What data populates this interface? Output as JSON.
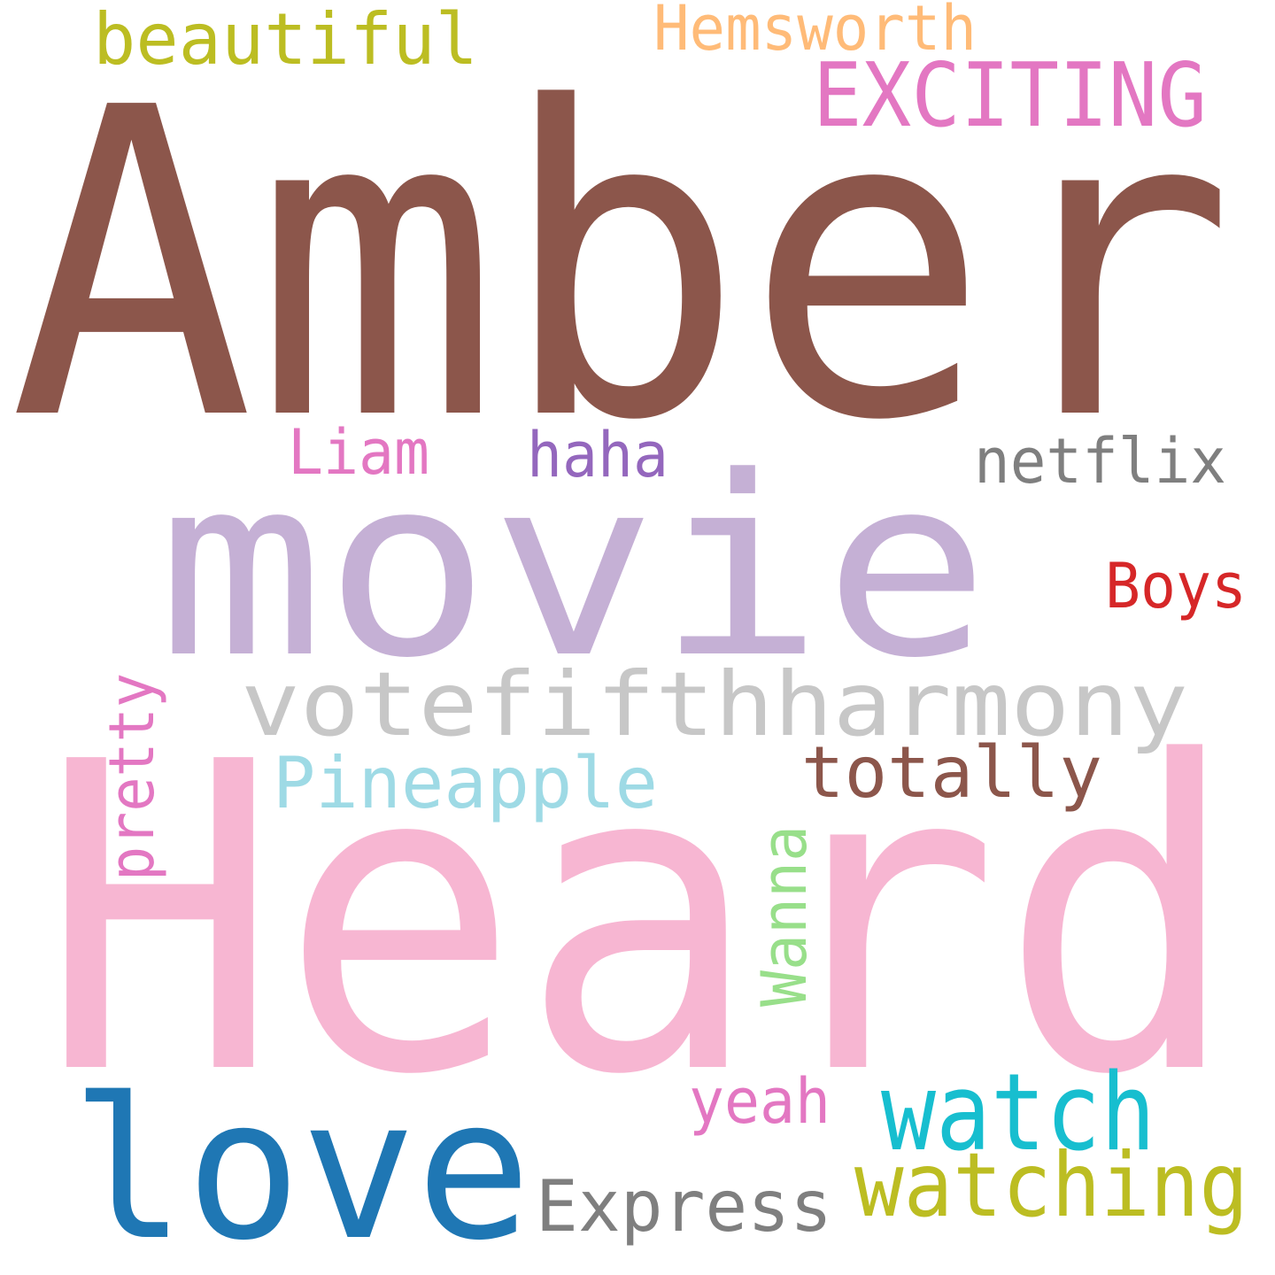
{
  "background": "#ffffff",
  "words": [
    {
      "text": "Amber",
      "color": "#8c564b"
    },
    {
      "text": "Heard",
      "color": "#f7b6d2"
    },
    {
      "text": "movie",
      "color": "#c5b0d5"
    },
    {
      "text": "love",
      "color": "#1f77b4"
    },
    {
      "text": "votefifthharmony",
      "color": "#c7c7c7"
    },
    {
      "text": "watch",
      "color": "#17becf"
    },
    {
      "text": "watching",
      "color": "#bcbd22"
    },
    {
      "text": "EXCITING",
      "color": "#e377c2"
    },
    {
      "text": "Express",
      "color": "#7f7f7f"
    },
    {
      "text": "beautiful",
      "color": "#bcbd22"
    },
    {
      "text": "Pineapple",
      "color": "#9edae5"
    },
    {
      "text": "totally",
      "color": "#8c564b"
    },
    {
      "text": "Hemsworth",
      "color": "#ffbb78"
    },
    {
      "text": "netflix",
      "color": "#7f7f7f"
    },
    {
      "text": "Boys",
      "color": "#d62728"
    },
    {
      "text": "haha",
      "color": "#9467bd"
    },
    {
      "text": "Liam",
      "color": "#e377c2"
    },
    {
      "text": "yeah",
      "color": "#e377c2"
    },
    {
      "text": "pretty",
      "color": "#e377c2"
    },
    {
      "text": "Wanna",
      "color": "#98df8a"
    }
  ]
}
